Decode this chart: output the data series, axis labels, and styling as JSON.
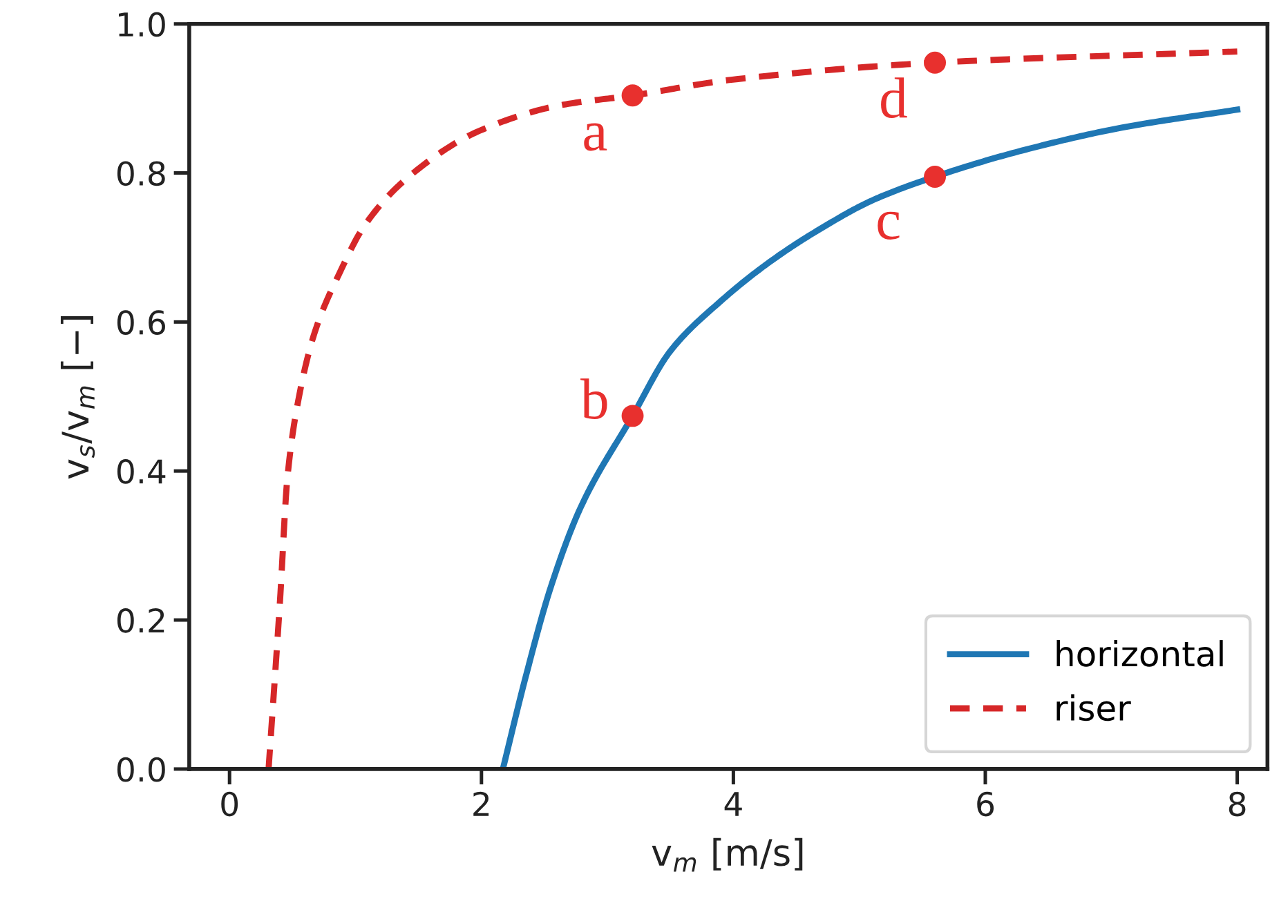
{
  "chart_data": {
    "type": "line",
    "xlabel": "v$_{m}$ [m/s]",
    "ylabel": "v$_{s}$/v$_{m}$ [−]",
    "xlim": [
      -0.32,
      8.24
    ],
    "ylim": [
      0,
      1
    ],
    "xticks": [
      0,
      2,
      4,
      6,
      8
    ],
    "yticks": [
      {
        "value": 0,
        "label": "0.0"
      },
      0.2,
      0.4,
      0.6,
      0.8,
      {
        "value": 1,
        "label": "1.0"
      }
    ],
    "grid": false,
    "legend": "bottom right",
    "series": [
      {
        "name": "horizontal",
        "color": "#1f77b4",
        "line_style": "solid",
        "marker": "none",
        "x": [
          2.17,
          2.35,
          2.55,
          2.79,
          3.2,
          3.5,
          3.9,
          4.3,
          4.7,
          5.1,
          5.6,
          6.29,
          7.09,
          8.0
        ],
        "values": [
          0,
          0.123,
          0.244,
          0.352,
          0.474,
          0.561,
          0.628,
          0.682,
          0.726,
          0.763,
          0.795,
          0.83,
          0.861,
          0.885
        ]
      },
      {
        "name": "riser",
        "color": "#d62728",
        "line_style": "dashed",
        "marker": "none",
        "x": [
          0.31,
          0.4,
          0.46,
          0.56,
          0.68,
          0.88,
          1.07,
          1.43,
          1.99,
          2.63,
          3.2,
          3.98,
          5.6,
          8.0
        ],
        "values": [
          0,
          0.224,
          0.392,
          0.507,
          0.588,
          0.668,
          0.729,
          0.796,
          0.857,
          0.891,
          0.904,
          0.925,
          0.948,
          0.963
        ]
      },
      {
        "type": "scatter",
        "color": "#e8302e",
        "marker": "circle",
        "x": [
          3.2,
          3.2,
          5.6,
          5.6
        ],
        "values": [
          0.904,
          0.474,
          0.795,
          0.948
        ],
        "value_labels": [
          "a",
          "b",
          "c",
          "d"
        ]
      }
    ]
  }
}
